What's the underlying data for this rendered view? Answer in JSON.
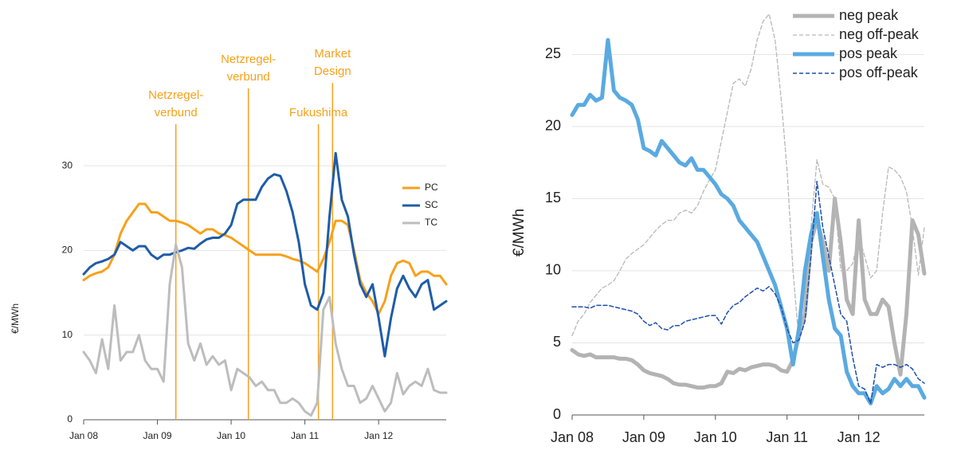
{
  "chart_data": [
    {
      "type": "line",
      "ylabel": "€/MWh",
      "x": [
        0,
        1,
        2,
        3,
        4,
        5,
        6,
        7,
        8,
        9,
        10,
        11,
        12,
        13,
        14,
        15,
        16,
        17,
        18,
        19,
        20,
        21,
        22,
        23,
        24,
        25,
        26,
        27,
        28,
        29,
        30,
        31,
        32,
        33,
        34,
        35,
        36,
        37,
        38,
        39,
        40,
        41,
        42,
        43,
        44,
        45,
        46,
        47,
        48,
        49,
        50,
        51,
        52,
        53,
        54,
        55,
        56,
        57,
        58,
        59
      ],
      "xlim": [
        0,
        59
      ],
      "xticks": [
        {
          "value": 0,
          "label": "Jan 08"
        },
        {
          "value": 12,
          "label": "Jan 09"
        },
        {
          "value": 24,
          "label": "Jan 10"
        },
        {
          "value": 36,
          "label": "Jan 11"
        },
        {
          "value": 48,
          "label": "Jan 12"
        }
      ],
      "ylim": [
        0,
        35
      ],
      "yticks": [
        0,
        10,
        20,
        30
      ],
      "grid": true,
      "legend": "right",
      "series": [
        {
          "name": "PC",
          "color": "#f7a11a",
          "values": [
            16.5,
            17,
            17.3,
            17.5,
            18,
            19.5,
            22,
            23.5,
            24.5,
            25.5,
            25.5,
            24.5,
            24.5,
            24,
            23.5,
            23.5,
            23.3,
            23,
            22.5,
            22,
            22.5,
            22.5,
            22,
            21.8,
            21.5,
            21,
            20.5,
            20,
            19.5,
            19.5,
            19.5,
            19.5,
            19.5,
            19.3,
            19,
            18.8,
            18.5,
            18,
            17.5,
            19,
            21,
            23.5,
            23.5,
            23,
            20,
            16.5,
            15,
            14,
            12.5,
            14,
            17,
            18.5,
            18.8,
            18.5,
            17,
            17.5,
            17.5,
            17,
            17,
            16
          ]
        },
        {
          "name": "SC",
          "color": "#1f5ca8",
          "values": [
            17.2,
            18,
            18.5,
            18.7,
            19,
            19.5,
            21,
            20.5,
            20,
            20.5,
            20.5,
            19.5,
            19,
            19.5,
            19.5,
            19.8,
            20,
            20.3,
            20.2,
            20.8,
            21.3,
            21.5,
            21.5,
            22,
            23,
            25.5,
            26,
            26,
            26,
            27.5,
            28.5,
            29,
            28.8,
            27,
            24.5,
            21,
            16,
            13.5,
            13,
            15,
            24,
            31.5,
            26,
            24,
            19.5,
            16,
            14.5,
            16,
            12,
            7.5,
            12,
            15.5,
            17,
            15.5,
            14.5,
            16,
            16.5,
            13,
            13.5,
            14
          ]
        },
        {
          "name": "TC",
          "color": "#bdbdbd",
          "values": [
            8,
            7,
            5.5,
            9.5,
            6,
            13.5,
            7,
            8,
            8,
            10,
            7,
            6,
            6,
            4.5,
            16,
            20.7,
            18,
            9,
            7,
            9,
            6.5,
            7.5,
            6.5,
            7,
            3.5,
            6,
            5.5,
            5,
            4,
            4.5,
            3.5,
            3.5,
            2,
            2,
            2.5,
            2,
            1,
            0.5,
            2,
            13,
            14.5,
            9,
            6,
            4,
            4,
            2,
            2.5,
            4,
            2.5,
            1,
            2,
            5.5,
            3,
            4,
            4.5,
            4,
            6,
            3.5,
            3.2,
            3.2
          ]
        }
      ],
      "annotations": [
        {
          "text": [
            "Netzregel-",
            "verbund"
          ],
          "x": 15
        },
        {
          "text": [
            "Netzregel-",
            "verbund"
          ],
          "x": 26.8
        },
        {
          "text": [
            "Fukushima"
          ],
          "x": 38.2
        },
        {
          "text": [
            "Market",
            "Design"
          ],
          "x": 40.5
        }
      ]
    },
    {
      "type": "line",
      "ylabel": "€/MWh",
      "x": [
        0,
        1,
        2,
        3,
        4,
        5,
        6,
        7,
        8,
        9,
        10,
        11,
        12,
        13,
        14,
        15,
        16,
        17,
        18,
        19,
        20,
        21,
        22,
        23,
        24,
        25,
        26,
        27,
        28,
        29,
        30,
        31,
        32,
        33,
        34,
        35,
        36,
        37,
        38,
        39,
        40,
        41,
        42,
        43,
        44,
        45,
        46,
        47,
        48,
        49,
        50,
        51,
        52,
        53,
        54,
        55,
        56,
        57,
        58,
        59
      ],
      "xlim": [
        0,
        59
      ],
      "xticks": [
        {
          "value": 0,
          "label": "Jan 08"
        },
        {
          "value": 12,
          "label": "Jan 09"
        },
        {
          "value": 24,
          "label": "Jan 10"
        },
        {
          "value": 36,
          "label": "Jan 11"
        },
        {
          "value": 48,
          "label": "Jan 12"
        }
      ],
      "ylim": [
        0,
        28
      ],
      "yticks": [
        0,
        5,
        10,
        15,
        20,
        25
      ],
      "grid": true,
      "legend": "upper right",
      "series": [
        {
          "name": "neg peak",
          "color": "#b3b3b3",
          "dashed": false,
          "values": [
            4.5,
            4.2,
            4.1,
            4.2,
            4,
            4,
            4,
            4,
            3.9,
            3.9,
            3.8,
            3.5,
            3.1,
            2.9,
            2.8,
            2.7,
            2.5,
            2.2,
            2.1,
            2.1,
            2,
            1.9,
            1.9,
            2,
            2,
            2.2,
            3,
            2.9,
            3.2,
            3.1,
            3.3,
            3.4,
            3.5,
            3.5,
            3.4,
            3.1,
            3,
            3.8,
            5.5,
            7,
            12,
            13.5,
            12,
            10,
            15,
            12,
            8,
            7,
            13.5,
            8,
            7,
            7,
            8,
            7.5,
            5,
            2.8,
            7,
            13.5,
            12.5,
            9.8
          ]
        },
        {
          "name": "neg off-peak",
          "color": "#b8b8b8",
          "dashed": true,
          "values": [
            5.5,
            6.5,
            7,
            7.8,
            8.3,
            8.8,
            9,
            9.3,
            10,
            10.8,
            11.2,
            11.5,
            11.8,
            12.3,
            12.8,
            13.2,
            13.5,
            13.5,
            14,
            14.2,
            14,
            14.5,
            15.5,
            16.3,
            17,
            19,
            21,
            23,
            23.3,
            22.8,
            24,
            26,
            27.3,
            27.8,
            26,
            22,
            17,
            10,
            5,
            7,
            13,
            17.7,
            16,
            15.8,
            15,
            10,
            10,
            10.5,
            12.5,
            11,
            9.5,
            10,
            14,
            17.2,
            17,
            16.5,
            15.5,
            13,
            9.7,
            13
          ]
        },
        {
          "name": "pos peak",
          "color": "#5aaae0",
          "dashed": false,
          "values": [
            20.8,
            21.5,
            21.5,
            22.2,
            21.8,
            22,
            26,
            22.5,
            22,
            21.8,
            21.5,
            20.5,
            18.5,
            18.3,
            18,
            19,
            18.5,
            18,
            17.5,
            17.3,
            17.8,
            17,
            17,
            16.5,
            16,
            15.3,
            15,
            14.5,
            13.5,
            13,
            12.5,
            12,
            11,
            10,
            9,
            7.5,
            6,
            3.5,
            6,
            10,
            12.5,
            14,
            11,
            8,
            6,
            5.5,
            3,
            2,
            1.5,
            1.5,
            0.8,
            2,
            1.5,
            1.8,
            2.5,
            2,
            2.5,
            2,
            2,
            1.2
          ]
        },
        {
          "name": "pos off-peak",
          "color": "#1f4fa8",
          "dashed": true,
          "values": [
            7.5,
            7.5,
            7.5,
            7.4,
            7.6,
            7.6,
            7.6,
            7.5,
            7.4,
            7.3,
            7.2,
            7,
            6.5,
            6.2,
            6.4,
            6,
            5.9,
            6.2,
            6.2,
            6.5,
            6.6,
            6.7,
            6.8,
            6.9,
            6.9,
            6.3,
            7.1,
            7.6,
            7.8,
            8.2,
            8.5,
            8.8,
            8.6,
            8.9,
            8.4,
            7.5,
            6,
            5,
            5.2,
            6.5,
            11,
            16.2,
            13,
            11,
            9,
            7,
            6.5,
            4,
            2,
            1.8,
            0.8,
            3.5,
            3.3,
            3.5,
            3.5,
            3.3,
            3.5,
            3.2,
            2.5,
            2.2
          ]
        }
      ]
    }
  ]
}
